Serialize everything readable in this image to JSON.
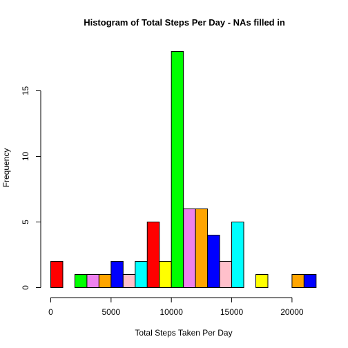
{
  "chart_data": {
    "type": "bar",
    "title": "Histogram of Total Steps Per Day - NAs filled in",
    "xlabel": "Total Steps Taken Per Day",
    "ylabel": "Frequency",
    "xlim": [
      0,
      22000
    ],
    "ylim": [
      0,
      18
    ],
    "bin_width": 1000,
    "x_ticks": [
      0,
      5000,
      10000,
      15000,
      20000
    ],
    "x_tick_labels": [
      "0",
      "5000",
      "10000",
      "15000",
      "20000"
    ],
    "y_ticks": [
      0,
      5,
      10,
      15
    ],
    "y_tick_labels": [
      "0",
      "5",
      "10",
      "15"
    ],
    "bin_starts": [
      0,
      1000,
      2000,
      3000,
      4000,
      5000,
      6000,
      7000,
      8000,
      9000,
      10000,
      11000,
      12000,
      13000,
      14000,
      15000,
      16000,
      17000,
      18000,
      19000,
      20000,
      21000
    ],
    "values": [
      2,
      0,
      1,
      1,
      1,
      2,
      1,
      2,
      5,
      2,
      18,
      6,
      6,
      4,
      2,
      5,
      0,
      1,
      0,
      0,
      1,
      1
    ],
    "colors": [
      "#ff0000",
      "#ffff00",
      "#00ff00",
      "#ee82ee",
      "#ffa500",
      "#0000ff",
      "#ffc0cb",
      "#00ffff",
      "#ff0000",
      "#ffff00",
      "#00ff00",
      "#ee82ee",
      "#ffa500",
      "#0000ff",
      "#ffc0cb",
      "#00ffff",
      "#ff0000",
      "#ffff00",
      "#00ff00",
      "#ee82ee",
      "#ffa500",
      "#0000ff"
    ],
    "grid": false,
    "legend": "none"
  }
}
